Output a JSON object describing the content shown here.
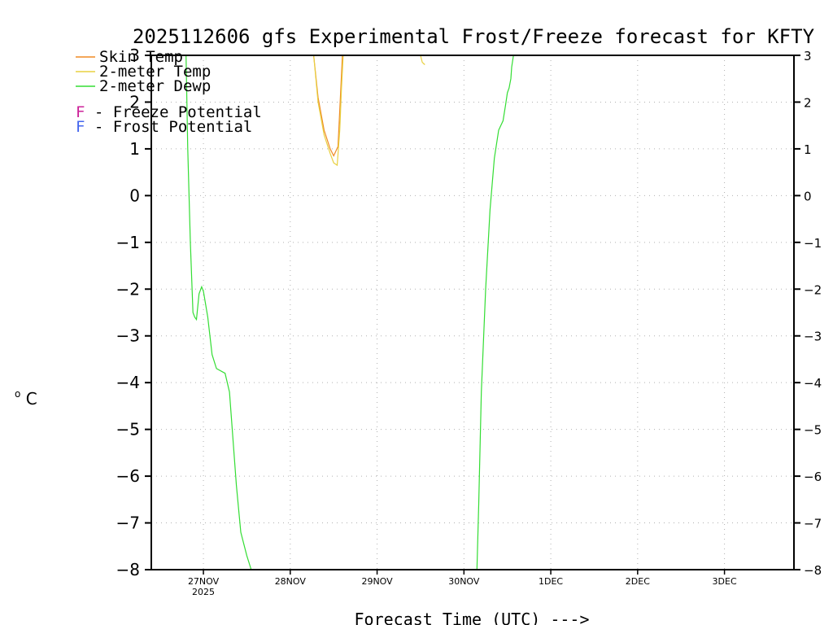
{
  "chart_data": {
    "type": "line",
    "title": "2025112606 gfs Experimental Frost/Freeze forecast for KFTY",
    "xlabel": "Forecast Time (UTC) --->",
    "ylabel_unit": "C",
    "ylabel_degree": "o",
    "ylim": [
      -8,
      3
    ],
    "xlim": [
      -0.6,
      6.8
    ],
    "grid": true,
    "y_ticks": [
      "3",
      "2",
      "1",
      "0",
      "−1",
      "−2",
      "−3",
      "−4",
      "−5",
      "−6",
      "−7",
      "−8"
    ],
    "y_tick_values": [
      3,
      2,
      1,
      0,
      -1,
      -2,
      -3,
      -4,
      -5,
      -6,
      -7,
      -8
    ],
    "x_ticks": [
      {
        "label": "27NOV",
        "sub": "2025",
        "value": 0
      },
      {
        "label": "28NOV",
        "sub": "",
        "value": 1
      },
      {
        "label": "29NOV",
        "sub": "",
        "value": 2
      },
      {
        "label": "30NOV",
        "sub": "",
        "value": 3
      },
      {
        "label": "1DEC",
        "sub": "",
        "value": 4
      },
      {
        "label": "2DEC",
        "sub": "",
        "value": 5
      },
      {
        "label": "3DEC",
        "sub": "",
        "value": 6
      }
    ],
    "legend": [
      {
        "name": "Skin Temp",
        "color": "#f08a24"
      },
      {
        "name": "2-meter Temp",
        "color": "#e8d040"
      },
      {
        "name": "2-meter Dewp",
        "color": "#33dd33"
      }
    ],
    "annotations": [
      {
        "letter": "F",
        "text": " - Freeze Potential",
        "color": "#cc2299"
      },
      {
        "letter": "F",
        "text": " - Frost Potential",
        "color": "#4466ee"
      }
    ],
    "series": [
      {
        "name": "Skin Temp",
        "color": "#f08a24",
        "x": [
          1.27,
          1.32,
          1.39,
          1.46,
          1.5,
          1.55,
          1.58,
          1.6
        ],
        "y": [
          3.0,
          2.1,
          1.4,
          1.0,
          0.85,
          1.05,
          2.2,
          3.0
        ]
      },
      {
        "name": "2-meter Temp",
        "color": "#e8d040",
        "x": [
          1.27,
          1.32,
          1.39,
          1.46,
          1.5,
          1.54,
          1.57,
          1.59,
          1.61,
          2.5,
          2.52,
          2.55
        ],
        "y": [
          3.0,
          2.0,
          1.3,
          0.9,
          0.7,
          0.65,
          1.4,
          2.3,
          3.0,
          3.0,
          2.85,
          2.8
        ],
        "gap_after_index": 8
      },
      {
        "name": "2-meter Dewp",
        "color": "#33dd33",
        "x": [
          -0.2,
          -0.18,
          -0.15,
          -0.12,
          -0.1,
          -0.08,
          -0.05,
          -0.02,
          0.0,
          0.05,
          0.1,
          0.15,
          0.25,
          0.3,
          0.38,
          0.43,
          0.5,
          0.55,
          3.15,
          3.17,
          3.2,
          3.25,
          3.3,
          3.35,
          3.4,
          3.45,
          3.48,
          3.5,
          3.52,
          3.54,
          3.55,
          3.57
        ],
        "y": [
          3.0,
          1.0,
          -1.0,
          -2.5,
          -2.6,
          -2.65,
          -2.1,
          -1.95,
          -2.05,
          -2.6,
          -3.4,
          -3.7,
          -3.8,
          -4.2,
          -6.2,
          -7.2,
          -7.7,
          -8.0,
          -8.0,
          -6.6,
          -4.2,
          -2.0,
          -0.3,
          0.8,
          1.4,
          1.6,
          1.95,
          2.2,
          2.3,
          2.5,
          2.75,
          3.0
        ],
        "gap_after_index": 17
      }
    ]
  }
}
